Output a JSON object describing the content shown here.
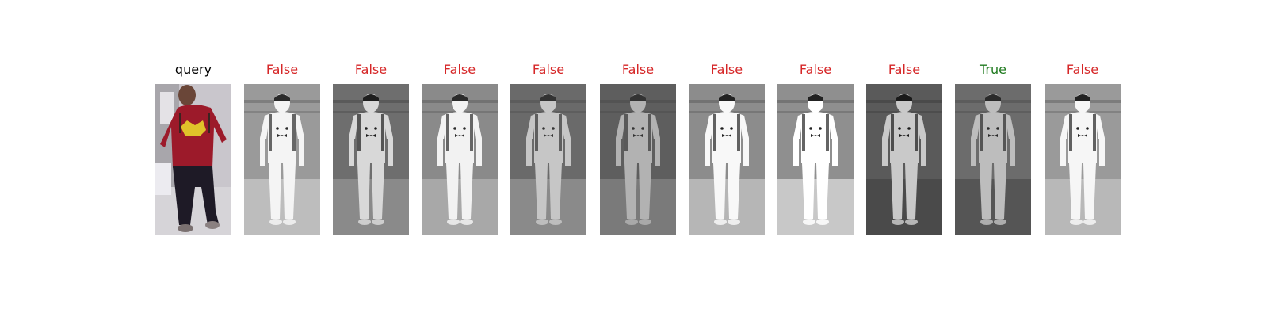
{
  "colors": {
    "query_label": "#000000",
    "false_label": "#d62728",
    "true_label": "#1f7a1f"
  },
  "panels": [
    {
      "label": "query",
      "kind": "query"
    },
    {
      "label": "False",
      "kind": "false",
      "bg": "#9a9a9a",
      "body": "#f4f4f4",
      "floor": "#bdbdbd",
      "ink": "#2a2a2a"
    },
    {
      "label": "False",
      "kind": "false",
      "bg": "#6e6e6e",
      "body": "#d8d8d8",
      "floor": "#8a8a8a",
      "ink": "#1e1e1e"
    },
    {
      "label": "False",
      "kind": "false",
      "bg": "#8a8a8a",
      "body": "#f2f2f2",
      "floor": "#a8a8a8",
      "ink": "#2a2a2a"
    },
    {
      "label": "False",
      "kind": "false",
      "bg": "#6a6a6a",
      "body": "#c6c6c6",
      "floor": "#8a8a8a",
      "ink": "#333333"
    },
    {
      "label": "False",
      "kind": "false",
      "bg": "#5e5e5e",
      "body": "#b2b2b2",
      "floor": "#7a7a7a",
      "ink": "#333333"
    },
    {
      "label": "False",
      "kind": "false",
      "bg": "#8c8c8c",
      "body": "#f8f8f8",
      "floor": "#b6b6b6",
      "ink": "#222222"
    },
    {
      "label": "False",
      "kind": "false",
      "bg": "#8f8f8f",
      "body": "#ffffff",
      "floor": "#c8c8c8",
      "ink": "#222222"
    },
    {
      "label": "False",
      "kind": "false",
      "bg": "#5a5a5a",
      "body": "#c9c9c9",
      "floor": "#4a4a4a",
      "ink": "#1a1a1a"
    },
    {
      "label": "True",
      "kind": "true",
      "bg": "#6c6c6c",
      "body": "#bdbdbd",
      "floor": "#555555",
      "ink": "#2a2a2a"
    },
    {
      "label": "False",
      "kind": "false",
      "bg": "#9a9a9a",
      "body": "#f6f6f6",
      "floor": "#b8b8b8",
      "ink": "#222222"
    }
  ]
}
